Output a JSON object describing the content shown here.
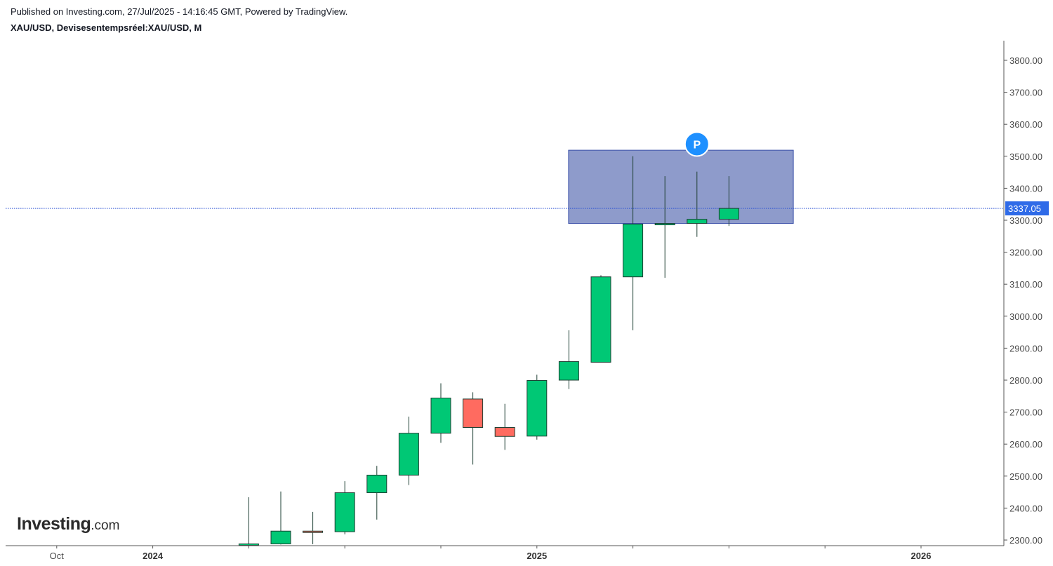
{
  "header": {
    "published_line": "Published on Investing.com, 27/Jul/2025 - 14:16:45 GMT, Powered by TradingView.",
    "symbol_line": "XAU/USD, Devisesentempsréel:XAU/USD, M"
  },
  "logo": {
    "main": "Investing",
    "suffix": ".com"
  },
  "chart_data": {
    "type": "candlestick",
    "symbol": "XAU/USD",
    "interval": "M",
    "ylim": [
      2280,
      3850
    ],
    "y_ticks": [
      "2300.00",
      "2400.00",
      "2500.00",
      "2600.00",
      "2700.00",
      "2800.00",
      "2900.00",
      "3000.00",
      "3100.00",
      "3200.00",
      "3300.00",
      "3400.00",
      "3500.00",
      "3600.00",
      "3700.00",
      "3800.00"
    ],
    "x_labels": [
      {
        "label": "Oct",
        "index": -7,
        "bold": false
      },
      {
        "label": "2024",
        "index": -4,
        "bold": true
      },
      {
        "label": "2025",
        "index": 8,
        "bold": true
      },
      {
        "label": "2026",
        "index": 20,
        "bold": true
      }
    ],
    "x_minor_ticks": [
      -1,
      2,
      5,
      11,
      14,
      17
    ],
    "candles": [
      {
        "index": -1,
        "open": 2286,
        "high": 2434,
        "low": 2286,
        "close": 2288
      },
      {
        "index": 0,
        "open": 2288,
        "high": 2452,
        "low": 2286,
        "close": 2328
      },
      {
        "index": 1,
        "open": 2328,
        "high": 2388,
        "low": 2287,
        "close": 2324
      },
      {
        "index": 2,
        "open": 2326,
        "high": 2484,
        "low": 2318,
        "close": 2448
      },
      {
        "index": 3,
        "open": 2448,
        "high": 2532,
        "low": 2364,
        "close": 2503
      },
      {
        "index": 4,
        "open": 2503,
        "high": 2686,
        "low": 2472,
        "close": 2634
      },
      {
        "index": 5,
        "open": 2634,
        "high": 2790,
        "low": 2604,
        "close": 2744
      },
      {
        "index": 6,
        "open": 2741,
        "high": 2762,
        "low": 2536,
        "close": 2652
      },
      {
        "index": 7,
        "open": 2652,
        "high": 2726,
        "low": 2582,
        "close": 2624
      },
      {
        "index": 8,
        "open": 2625,
        "high": 2817,
        "low": 2614,
        "close": 2799
      },
      {
        "index": 9,
        "open": 2800,
        "high": 2956,
        "low": 2772,
        "close": 2858
      },
      {
        "index": 10,
        "open": 2856,
        "high": 3128,
        "low": 2856,
        "close": 3123
      },
      {
        "index": 11,
        "open": 3123,
        "high": 3500,
        "low": 2956,
        "close": 3288
      },
      {
        "index": 12,
        "open": 3287,
        "high": 3438,
        "low": 3120,
        "close": 3290
      },
      {
        "index": 13,
        "open": 3290,
        "high": 3452,
        "low": 3248,
        "close": 3303
      },
      {
        "index": 14,
        "open": 3303,
        "high": 3438,
        "low": 3282,
        "close": 3337
      }
    ],
    "last_price": 3337.05,
    "last_price_label": "3337.05",
    "zone": {
      "index_start": 9,
      "index_end": 16,
      "price_low": 3290,
      "price_high": 3519
    },
    "marker": {
      "label": "P",
      "index": 13,
      "price": 3538
    },
    "colors": {
      "up": "#00c875",
      "down": "#ff6b60",
      "wick": "#1e3f33",
      "zone_fill": "#8e9bcb",
      "zone_border": "#3a4fa8",
      "price_line": "#2f55d4",
      "price_label_bg": "#2f6be8",
      "marker_bg": "#1e90ff"
    }
  }
}
